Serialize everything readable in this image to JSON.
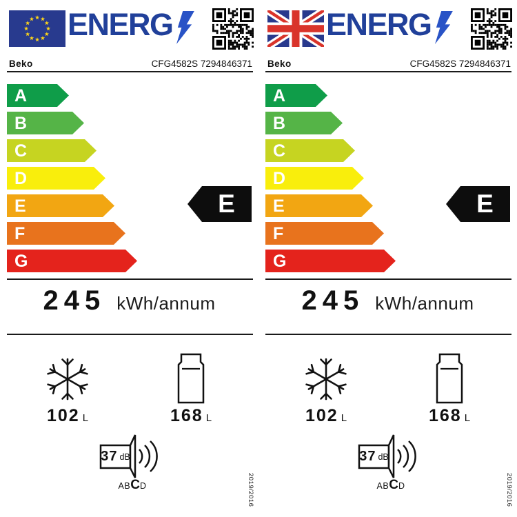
{
  "colors": {
    "logo_blue": "#21409a",
    "bolt_blue": "#2953c6",
    "class_a_green": "#0f9d49",
    "class_b_green": "#55b447",
    "class_c_yellow_green": "#c6d421",
    "class_d_yellow": "#f9ee0c",
    "class_e_amber": "#f2a612",
    "class_f_orange": "#e8731d",
    "class_g_red": "#e4231c",
    "indicator_black": "#0d0d0d",
    "eu_flag_blue": "#283a8e",
    "eu_star_yellow": "#ffd617",
    "uk_flag_blue": "#28398d",
    "uk_flag_red": "#d9342b"
  },
  "labels": [
    {
      "region": "EU",
      "flag_icon": "eu-flag",
      "logo_text": "ENERG",
      "brand": "Beko",
      "model": "CFG4582S 7294846371",
      "scale": [
        {
          "letter": "A"
        },
        {
          "letter": "B"
        },
        {
          "letter": "C"
        },
        {
          "letter": "D"
        },
        {
          "letter": "E"
        },
        {
          "letter": "F"
        },
        {
          "letter": "G"
        }
      ],
      "rating": "E",
      "energy_value": "245",
      "energy_unit": "kWh/annum",
      "freezer_value": "102",
      "freezer_unit": "L",
      "fridge_value": "168",
      "fridge_unit": "L",
      "noise_value": "37",
      "noise_unit": "dB",
      "noise_scale_pre": "AB",
      "noise_class": "C",
      "noise_scale_post": "D",
      "regulation": "2019/2016"
    },
    {
      "region": "UK",
      "flag_icon": "uk-flag",
      "logo_text": "ENERG",
      "brand": "Beko",
      "model": "CFG4582S 7294846371",
      "scale": [
        {
          "letter": "A"
        },
        {
          "letter": "B"
        },
        {
          "letter": "C"
        },
        {
          "letter": "D"
        },
        {
          "letter": "E"
        },
        {
          "letter": "F"
        },
        {
          "letter": "G"
        }
      ],
      "rating": "E",
      "energy_value": "245",
      "energy_unit": "kWh/annum",
      "freezer_value": "102",
      "freezer_unit": "L",
      "fridge_value": "168",
      "fridge_unit": "L",
      "noise_value": "37",
      "noise_unit": "dB",
      "noise_scale_pre": "AB",
      "noise_class": "C",
      "noise_scale_post": "D",
      "regulation": "2019/2016"
    }
  ]
}
